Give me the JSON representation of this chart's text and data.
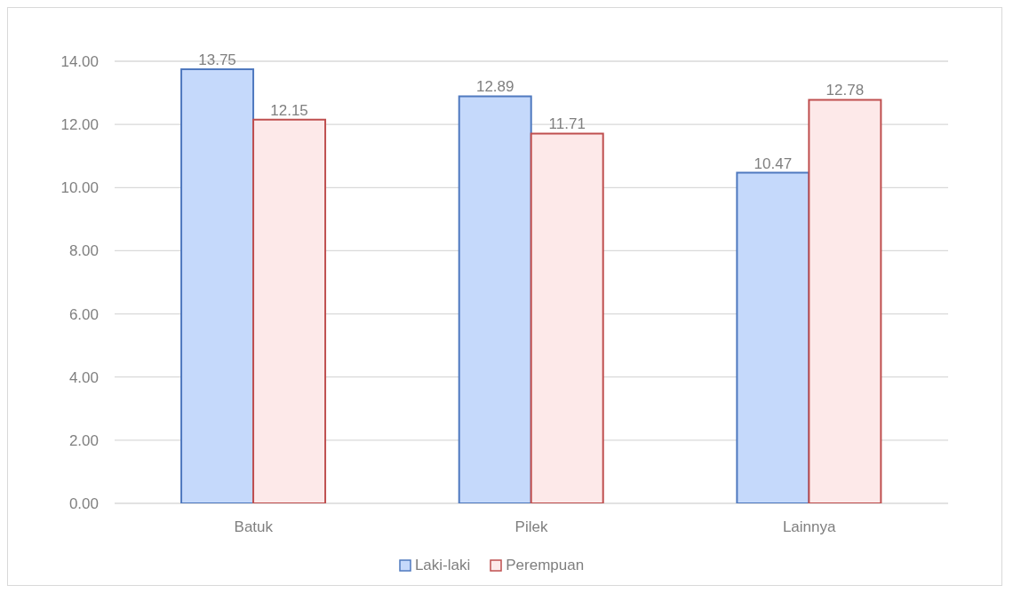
{
  "chart_data": {
    "type": "bar",
    "categories": [
      "Batuk",
      "Pilek",
      "Lainnya"
    ],
    "series": [
      {
        "name": "Laki-laki",
        "color": "#c5d9fb",
        "values": [
          13.75,
          12.89,
          10.47
        ]
      },
      {
        "name": "Perempuan",
        "color": "#fde9e9",
        "values": [
          12.15,
          11.71,
          12.78
        ]
      }
    ],
    "ylim": [
      0,
      14
    ],
    "yticks": [
      {
        "value": 0,
        "label": "0.00"
      },
      {
        "value": 2,
        "label": "2.00"
      },
      {
        "value": 4,
        "label": "4.00"
      },
      {
        "value": 6,
        "label": "6.00"
      },
      {
        "value": 8,
        "label": "8.00"
      },
      {
        "value": 10,
        "label": "10.00"
      },
      {
        "value": 12,
        "label": "12.00"
      },
      {
        "value": 14,
        "label": "14.00"
      }
    ],
    "grid": "y",
    "legend": "bottom",
    "data_labels": true
  }
}
